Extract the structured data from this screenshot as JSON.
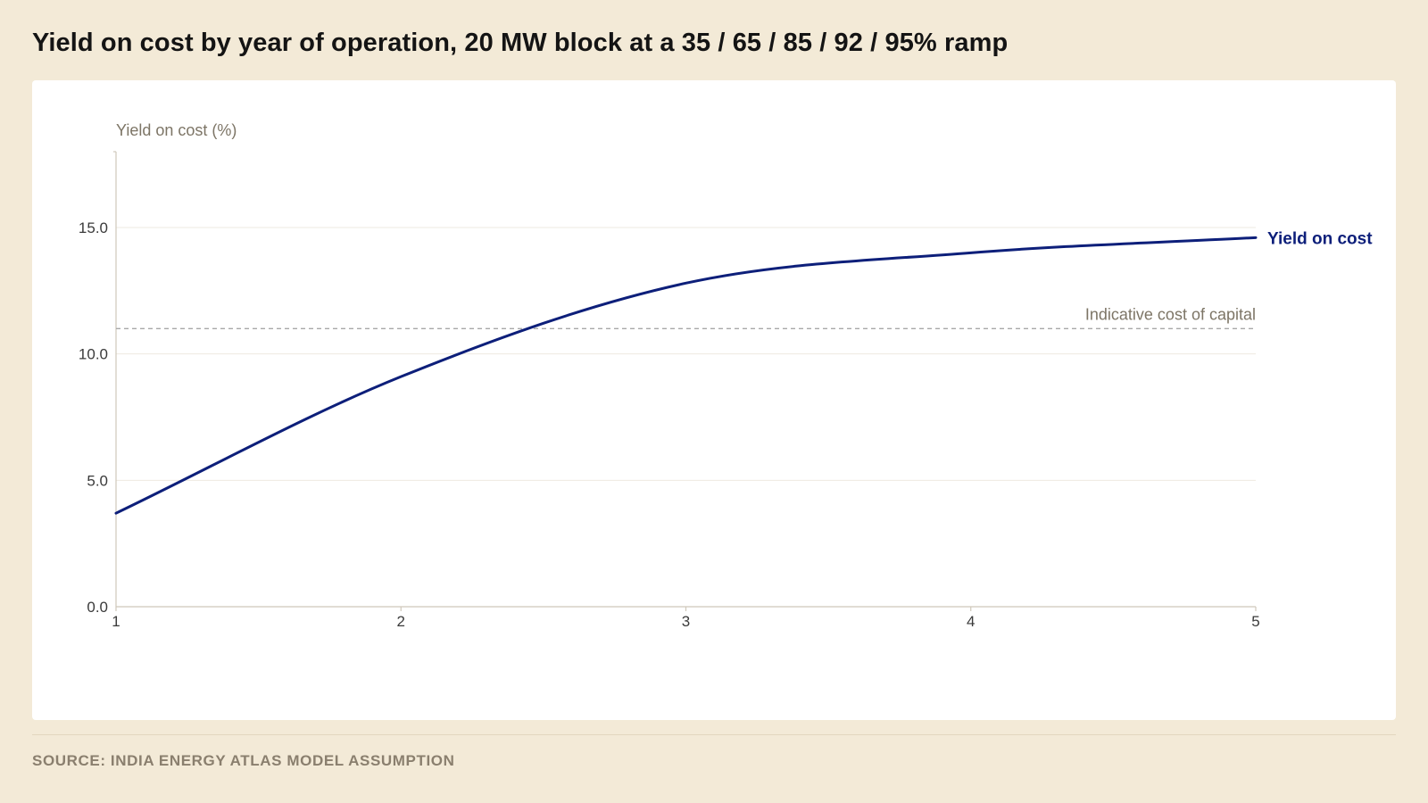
{
  "title": "Yield on cost by year of operation, 20 MW block at a 35 / 65 / 85 / 92 / 95% ramp",
  "source": "SOURCE: INDIA ENERGY ATLAS MODEL ASSUMPTION",
  "colors": {
    "series": "#0d1f7a",
    "reference": "#a8a8a8",
    "grid": "#eeeae0",
    "axis": "#cfc8ba"
  },
  "chart_data": {
    "type": "line",
    "x": [
      1,
      2,
      3,
      4,
      5
    ],
    "xticks": [
      "1",
      "2",
      "3",
      "4",
      "5"
    ],
    "xlim": [
      1,
      5
    ],
    "ylim": [
      0,
      18
    ],
    "yticks": [
      0,
      5,
      10,
      15
    ],
    "ytick_labels": [
      "0.0",
      "5.0",
      "10.0",
      "15.0"
    ],
    "ylabel": "Yield on cost (%)",
    "xlabel": "",
    "grid": true,
    "series": [
      {
        "name": "Yield on cost",
        "values": [
          3.7,
          9.1,
          12.8,
          14.0,
          14.6
        ]
      }
    ],
    "reference_line": {
      "label": "Indicative cost of capital",
      "value": 11.0
    }
  }
}
